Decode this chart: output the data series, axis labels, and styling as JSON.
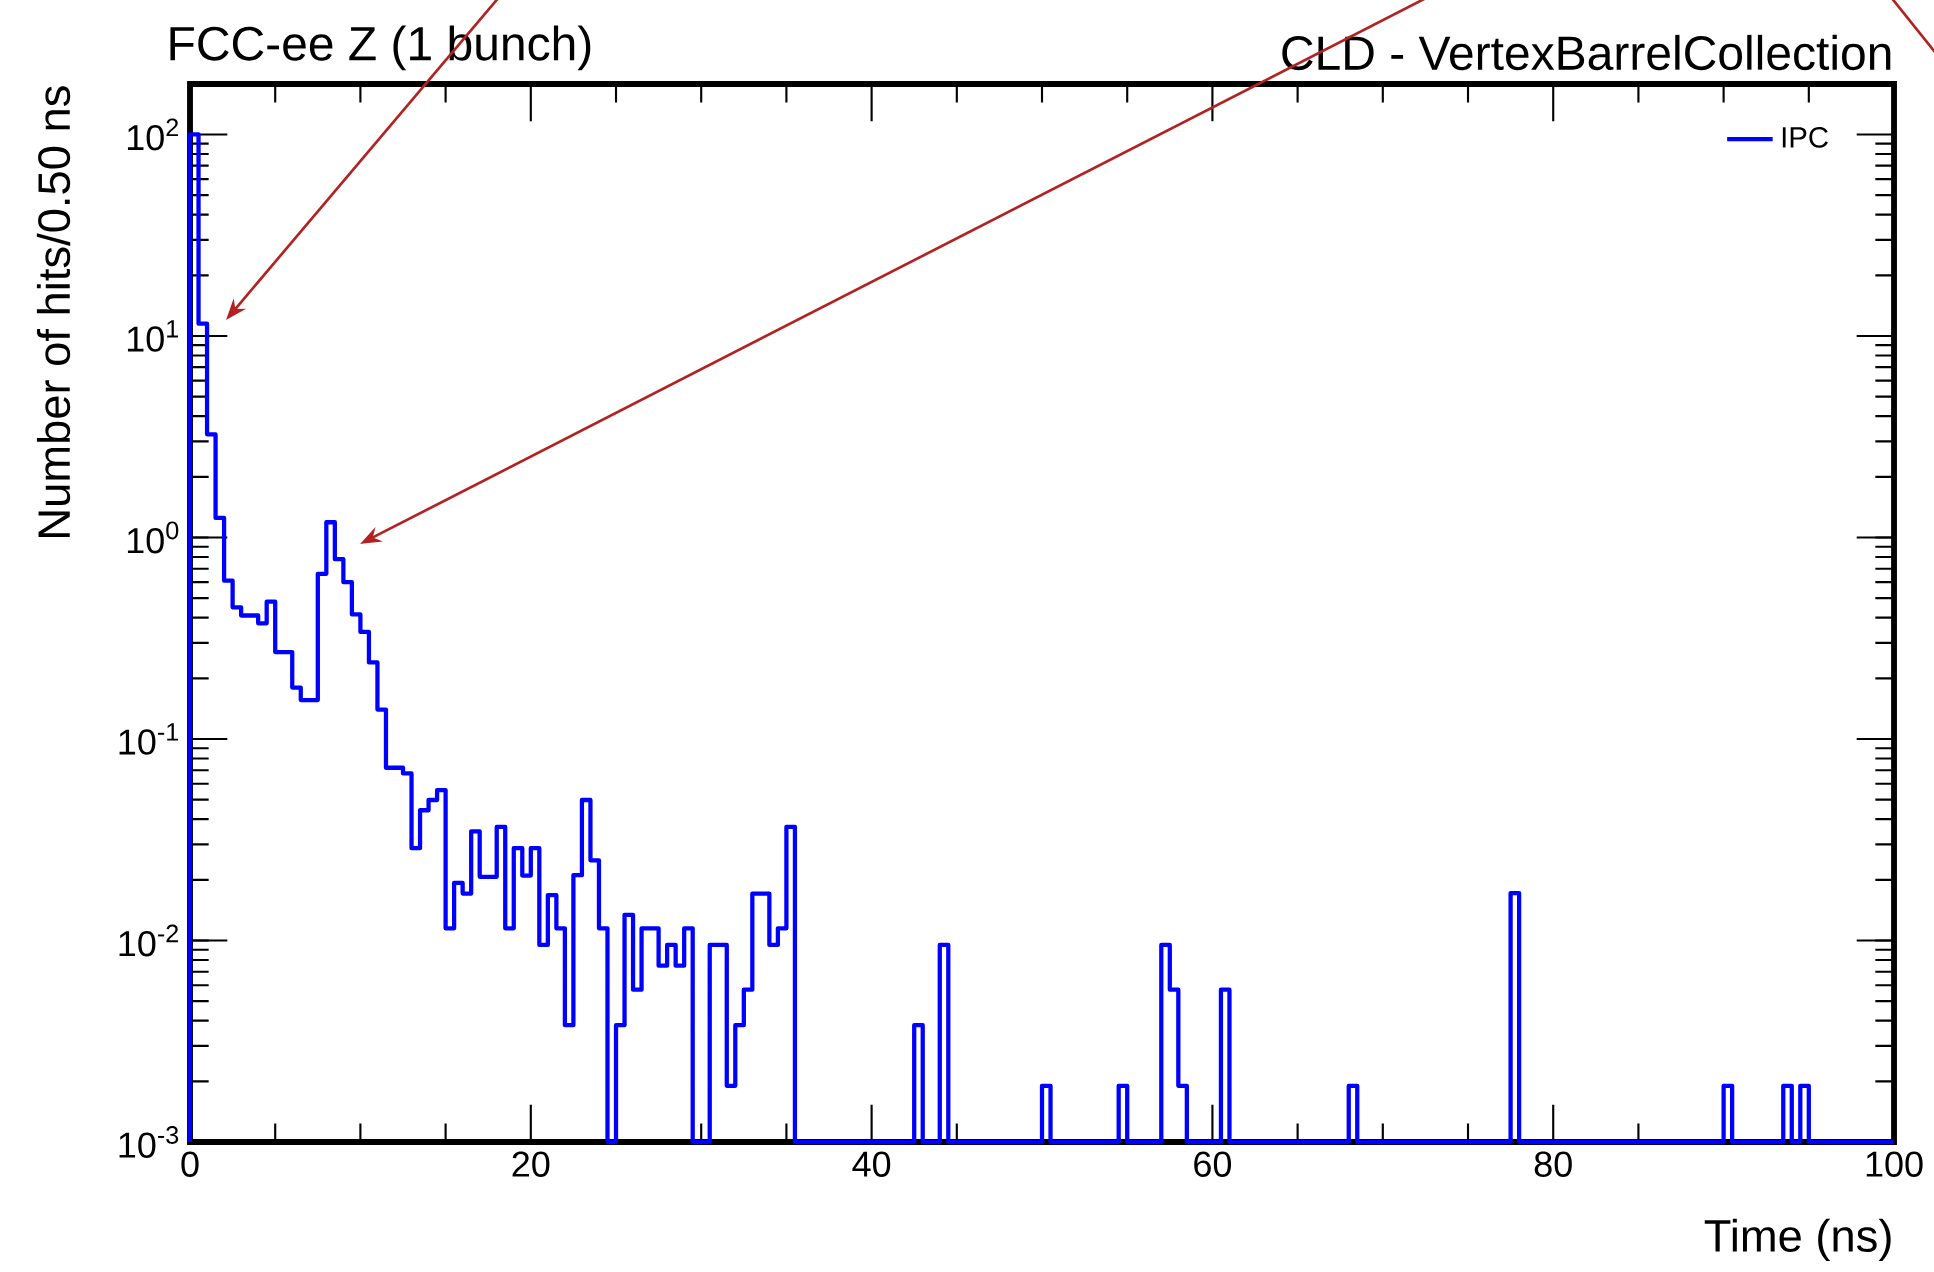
{
  "chart_data": {
    "type": "histogram",
    "title": "FCC-ee Z (1 bunch)",
    "subtitle": "CLD - VertexBarrelCollection",
    "xlabel": "Time (ns)",
    "ylabel": "Number of hits/0.50 ns",
    "bins": [
      0,
      0.5,
      1,
      1.5,
      2,
      2.5,
      3,
      3.5,
      4,
      4.5,
      5,
      5.5,
      6,
      6.5,
      7,
      7.5,
      8,
      8.5,
      9,
      9.5,
      10,
      10.5,
      11,
      11.5,
      12,
      12.5,
      13,
      13.5,
      14,
      14.5,
      15,
      15.5,
      16,
      16.5,
      17,
      17.5,
      18,
      18.5,
      19,
      19.5,
      20,
      20.5,
      21,
      21.5,
      22,
      22.5,
      23,
      23.5,
      24,
      24.5,
      25,
      25.5,
      26,
      26.5,
      27,
      27.5,
      28,
      28.5,
      29,
      29.5,
      30,
      30.5,
      31,
      31.5,
      32,
      32.5,
      33,
      33.5,
      34,
      34.5,
      35,
      35.5,
      36,
      36.5,
      37,
      37.5,
      38,
      38.5,
      39,
      39.5,
      40,
      40.5,
      41,
      41.5,
      42,
      42.5,
      43,
      43.5,
      44,
      44.5,
      45,
      45.5,
      46,
      46.5,
      47,
      47.5,
      48,
      48.5,
      49,
      49.5,
      50,
      50.5,
      51,
      51.5,
      52,
      52.5,
      53,
      53.5,
      54,
      54.5,
      55,
      55.5,
      56,
      56.5,
      57,
      57.5,
      58,
      58.5,
      59,
      59.5,
      60,
      60.5,
      61,
      61.5,
      62,
      62.5,
      63,
      63.5,
      64,
      64.5,
      65,
      65.5,
      66,
      66.5,
      67,
      67.5,
      68,
      68.5,
      69,
      69.5,
      70,
      70.5,
      71,
      71.5,
      72,
      72.5,
      73,
      73.5,
      74,
      74.5,
      75,
      75.5,
      76,
      76.5,
      77,
      77.5,
      78,
      78.5,
      79,
      79.5,
      80,
      80.5,
      81,
      81.5,
      82,
      82.5,
      83,
      83.5,
      84,
      84.5,
      85,
      85.5,
      86,
      86.5,
      87,
      87.5,
      88,
      88.5,
      89,
      89.5,
      90,
      90.5,
      91,
      91.5,
      92,
      92.5,
      93,
      93.5,
      94,
      94.5,
      95,
      95.5,
      96,
      96.5,
      97,
      97.5,
      98,
      98.5,
      99,
      99.5,
      100
    ],
    "series": [
      {
        "name": "IPC",
        "color": "#0000ff",
        "values": [
          100,
          11.5,
          3.25,
          1.25,
          0.61,
          0.45,
          0.41,
          0.41,
          0.375,
          0.48,
          0.27,
          0.27,
          0.18,
          0.156,
          0.156,
          0.66,
          1.19,
          0.78,
          0.6,
          0.415,
          0.34,
          0.24,
          0.14,
          0.072,
          0.072,
          0.0675,
          0.0287,
          0.0443,
          0.0498,
          0.0557,
          0.0115,
          0.0193,
          0.0171,
          0.0348,
          0.0207,
          0.0207,
          0.0366,
          0.0115,
          0.0287,
          0.021,
          0.0287,
          0.0095,
          0.0168,
          0.0115,
          0.0038,
          0.0211,
          0.0498,
          0.025,
          0.0115,
          null,
          0.0038,
          0.0134,
          0.0057,
          0.0115,
          0.0115,
          0.0075,
          0.0095,
          0.0075,
          0.0115,
          null,
          null,
          0.0095,
          0.0095,
          0.0019,
          0.0038,
          0.0057,
          0.0171,
          0.0171,
          0.0095,
          0.0115,
          0.0366,
          null,
          null,
          null,
          null,
          null,
          null,
          null,
          null,
          null,
          null,
          null,
          null,
          null,
          null,
          0.0038,
          null,
          null,
          0.0095,
          null,
          null,
          null,
          null,
          null,
          null,
          null,
          null,
          null,
          null,
          null,
          0.0019,
          null,
          null,
          null,
          null,
          null,
          null,
          null,
          null,
          0.0019,
          null,
          null,
          null,
          null,
          0.0095,
          0.0057,
          0.0019,
          null,
          null,
          null,
          null,
          0.0057,
          null,
          null,
          null,
          null,
          null,
          null,
          null,
          null,
          null,
          null,
          null,
          null,
          null,
          null,
          0.0019,
          null,
          null,
          null,
          null,
          null,
          null,
          null,
          null,
          null,
          null,
          null,
          null,
          null,
          null,
          null,
          null,
          null,
          null,
          0.0172,
          null,
          null,
          null,
          null,
          null,
          null,
          null,
          null,
          null,
          null,
          null,
          null,
          null,
          null,
          null,
          null,
          null,
          null,
          null,
          null,
          null,
          null,
          null,
          null,
          0.0019,
          null,
          null,
          null,
          null,
          null,
          null,
          0.0019,
          null,
          0.0019,
          null,
          null,
          null,
          null,
          null,
          null,
          null,
          null,
          null,
          null
        ]
      }
    ],
    "xlim": [
      0,
      100
    ],
    "ylim": [
      0.001,
      178
    ],
    "xticks": [
      0,
      20,
      40,
      60,
      80,
      100
    ],
    "yticks": [
      {
        "value": 0.001,
        "label": "10$^{-3}$"
      },
      {
        "value": 0.01,
        "label": "10$^{-2}$"
      },
      {
        "value": 0.1,
        "label": "10$^{-1}$"
      },
      {
        "value": 1,
        "label": "10$^{0}$"
      },
      {
        "value": 10,
        "label": "10$^{1}$"
      },
      {
        "value": 100,
        "label": "10$^{2}$"
      }
    ],
    "log": "y",
    "legend": "top right"
  }
}
